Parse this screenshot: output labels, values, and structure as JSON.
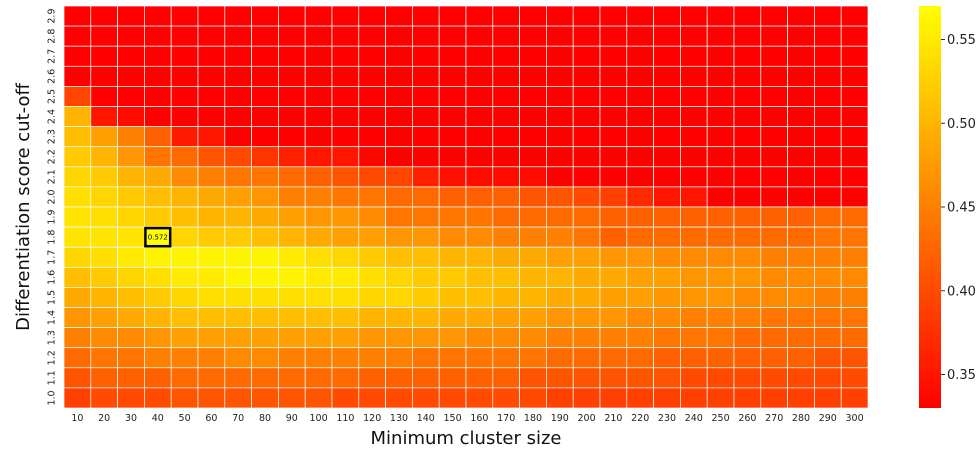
{
  "chart_data": {
    "type": "heatmap",
    "xlabel": "Minimum cluster size",
    "ylabel": "Differentiation score cut-off",
    "x": [
      "10",
      "20",
      "30",
      "40",
      "50",
      "60",
      "70",
      "80",
      "90",
      "100",
      "110",
      "120",
      "130",
      "140",
      "150",
      "160",
      "170",
      "180",
      "190",
      "200",
      "210",
      "220",
      "230",
      "240",
      "250",
      "260",
      "270",
      "280",
      "290",
      "300"
    ],
    "y": [
      "2.9",
      "2.8",
      "2.7",
      "2.6",
      "2.5",
      "2.4",
      "2.3",
      "2.2",
      "2.1",
      "2.0",
      "1.9",
      "1.8",
      "1.7",
      "1.6",
      "1.5",
      "1.4",
      "1.3",
      "1.2",
      "1.1",
      "1.0"
    ],
    "values": [
      [
        0.33,
        0.33,
        0.33,
        0.33,
        0.33,
        0.33,
        0.33,
        0.33,
        0.33,
        0.33,
        0.33,
        0.33,
        0.33,
        0.33,
        0.33,
        0.33,
        0.33,
        0.33,
        0.33,
        0.33,
        0.33,
        0.33,
        0.33,
        0.33,
        0.33,
        0.33,
        0.33,
        0.33,
        0.33,
        0.33
      ],
      [
        0.33,
        0.33,
        0.33,
        0.33,
        0.33,
        0.33,
        0.33,
        0.33,
        0.33,
        0.33,
        0.33,
        0.33,
        0.33,
        0.33,
        0.33,
        0.33,
        0.33,
        0.33,
        0.33,
        0.33,
        0.33,
        0.33,
        0.33,
        0.33,
        0.33,
        0.33,
        0.33,
        0.33,
        0.33,
        0.33
      ],
      [
        0.33,
        0.33,
        0.33,
        0.33,
        0.33,
        0.33,
        0.33,
        0.33,
        0.33,
        0.33,
        0.33,
        0.33,
        0.33,
        0.33,
        0.33,
        0.33,
        0.33,
        0.33,
        0.33,
        0.33,
        0.33,
        0.33,
        0.33,
        0.33,
        0.33,
        0.33,
        0.33,
        0.33,
        0.33,
        0.33
      ],
      [
        0.33,
        0.33,
        0.33,
        0.33,
        0.33,
        0.33,
        0.33,
        0.33,
        0.33,
        0.33,
        0.33,
        0.33,
        0.33,
        0.33,
        0.33,
        0.33,
        0.33,
        0.33,
        0.33,
        0.33,
        0.33,
        0.33,
        0.33,
        0.33,
        0.33,
        0.33,
        0.33,
        0.33,
        0.33,
        0.33
      ],
      [
        0.395,
        0.33,
        0.33,
        0.33,
        0.33,
        0.33,
        0.33,
        0.33,
        0.33,
        0.33,
        0.33,
        0.33,
        0.33,
        0.33,
        0.33,
        0.33,
        0.33,
        0.33,
        0.33,
        0.33,
        0.33,
        0.33,
        0.33,
        0.33,
        0.33,
        0.33,
        0.33,
        0.33,
        0.33,
        0.33
      ],
      [
        0.5,
        0.35,
        0.34,
        0.33,
        0.33,
        0.33,
        0.33,
        0.33,
        0.33,
        0.33,
        0.33,
        0.33,
        0.33,
        0.33,
        0.33,
        0.33,
        0.33,
        0.33,
        0.33,
        0.33,
        0.33,
        0.33,
        0.33,
        0.33,
        0.33,
        0.33,
        0.33,
        0.33,
        0.33,
        0.33
      ],
      [
        0.51,
        0.48,
        0.45,
        0.42,
        0.355,
        0.35,
        0.33,
        0.33,
        0.33,
        0.33,
        0.33,
        0.33,
        0.33,
        0.33,
        0.33,
        0.33,
        0.33,
        0.33,
        0.33,
        0.33,
        0.33,
        0.33,
        0.33,
        0.33,
        0.33,
        0.33,
        0.33,
        0.33,
        0.33,
        0.33
      ],
      [
        0.52,
        0.5,
        0.47,
        0.44,
        0.43,
        0.41,
        0.4,
        0.38,
        0.36,
        0.35,
        0.35,
        0.335,
        0.33,
        0.33,
        0.33,
        0.33,
        0.33,
        0.33,
        0.33,
        0.33,
        0.33,
        0.33,
        0.33,
        0.33,
        0.33,
        0.33,
        0.33,
        0.33,
        0.33,
        0.33
      ],
      [
        0.53,
        0.52,
        0.5,
        0.49,
        0.46,
        0.45,
        0.44,
        0.44,
        0.43,
        0.42,
        0.41,
        0.4,
        0.395,
        0.36,
        0.345,
        0.34,
        0.34,
        0.34,
        0.33,
        0.33,
        0.33,
        0.33,
        0.33,
        0.33,
        0.33,
        0.33,
        0.33,
        0.33,
        0.33,
        0.33
      ],
      [
        0.54,
        0.53,
        0.52,
        0.51,
        0.5,
        0.49,
        0.48,
        0.47,
        0.45,
        0.45,
        0.44,
        0.44,
        0.43,
        0.43,
        0.42,
        0.42,
        0.42,
        0.41,
        0.41,
        0.4,
        0.39,
        0.37,
        0.35,
        0.35,
        0.33,
        0.33,
        0.33,
        0.33,
        0.33,
        0.33
      ],
      [
        0.545,
        0.54,
        0.53,
        0.52,
        0.51,
        0.5,
        0.5,
        0.49,
        0.48,
        0.47,
        0.47,
        0.46,
        0.44,
        0.44,
        0.44,
        0.44,
        0.43,
        0.43,
        0.43,
        0.43,
        0.42,
        0.42,
        0.42,
        0.42,
        0.42,
        0.42,
        0.42,
        0.42,
        0.43,
        0.43
      ],
      [
        0.545,
        0.545,
        0.545,
        0.572,
        0.53,
        0.52,
        0.52,
        0.51,
        0.5,
        0.49,
        0.48,
        0.48,
        0.47,
        0.47,
        0.46,
        0.46,
        0.45,
        0.45,
        0.45,
        0.44,
        0.42,
        0.43,
        0.43,
        0.43,
        0.43,
        0.43,
        0.43,
        0.43,
        0.44,
        0.44
      ],
      [
        0.53,
        0.54,
        0.55,
        0.56,
        0.56,
        0.56,
        0.56,
        0.56,
        0.55,
        0.54,
        0.53,
        0.52,
        0.51,
        0.51,
        0.5,
        0.5,
        0.49,
        0.49,
        0.48,
        0.48,
        0.47,
        0.47,
        0.46,
        0.46,
        0.46,
        0.46,
        0.45,
        0.45,
        0.45,
        0.45
      ],
      [
        0.51,
        0.52,
        0.53,
        0.54,
        0.55,
        0.55,
        0.56,
        0.56,
        0.56,
        0.55,
        0.55,
        0.54,
        0.53,
        0.52,
        0.52,
        0.51,
        0.51,
        0.5,
        0.5,
        0.49,
        0.49,
        0.48,
        0.48,
        0.47,
        0.47,
        0.47,
        0.46,
        0.46,
        0.46,
        0.46
      ],
      [
        0.49,
        0.5,
        0.51,
        0.52,
        0.53,
        0.54,
        0.54,
        0.54,
        0.54,
        0.54,
        0.54,
        0.53,
        0.53,
        0.52,
        0.51,
        0.51,
        0.5,
        0.5,
        0.49,
        0.49,
        0.48,
        0.48,
        0.47,
        0.47,
        0.47,
        0.46,
        0.46,
        0.46,
        0.45,
        0.45
      ],
      [
        0.47,
        0.48,
        0.49,
        0.5,
        0.51,
        0.51,
        0.51,
        0.51,
        0.51,
        0.51,
        0.51,
        0.5,
        0.5,
        0.5,
        0.49,
        0.49,
        0.48,
        0.48,
        0.47,
        0.47,
        0.47,
        0.46,
        0.46,
        0.45,
        0.45,
        0.45,
        0.44,
        0.44,
        0.44,
        0.44
      ],
      [
        0.45,
        0.46,
        0.46,
        0.47,
        0.48,
        0.48,
        0.48,
        0.48,
        0.48,
        0.48,
        0.48,
        0.47,
        0.47,
        0.47,
        0.47,
        0.46,
        0.46,
        0.46,
        0.45,
        0.45,
        0.45,
        0.45,
        0.44,
        0.44,
        0.44,
        0.43,
        0.43,
        0.43,
        0.43,
        0.43
      ],
      [
        0.43,
        0.44,
        0.44,
        0.45,
        0.45,
        0.45,
        0.46,
        0.46,
        0.45,
        0.45,
        0.45,
        0.45,
        0.45,
        0.44,
        0.44,
        0.44,
        0.44,
        0.44,
        0.43,
        0.43,
        0.43,
        0.43,
        0.42,
        0.42,
        0.42,
        0.42,
        0.42,
        0.42,
        0.41,
        0.41
      ],
      [
        0.41,
        0.42,
        0.42,
        0.42,
        0.43,
        0.43,
        0.43,
        0.43,
        0.43,
        0.43,
        0.43,
        0.42,
        0.42,
        0.42,
        0.42,
        0.42,
        0.42,
        0.41,
        0.41,
        0.41,
        0.41,
        0.41,
        0.41,
        0.4,
        0.4,
        0.4,
        0.4,
        0.4,
        0.4,
        0.4
      ],
      [
        0.39,
        0.4,
        0.4,
        0.4,
        0.41,
        0.41,
        0.41,
        0.41,
        0.41,
        0.41,
        0.4,
        0.4,
        0.4,
        0.4,
        0.4,
        0.4,
        0.4,
        0.4,
        0.39,
        0.39,
        0.39,
        0.39,
        0.39,
        0.39,
        0.39,
        0.39,
        0.39,
        0.39,
        0.39,
        0.39
      ]
    ],
    "vmin": 0.33,
    "vmax": 0.57,
    "colormap": "autumn",
    "colorbar_ticks": [
      "0.35",
      "0.40",
      "0.45",
      "0.50",
      "0.55"
    ],
    "colorbar_position": "right",
    "highlight": {
      "x": "40",
      "y": "1.8",
      "label": "0.572"
    },
    "grid": true,
    "legend": "none"
  }
}
